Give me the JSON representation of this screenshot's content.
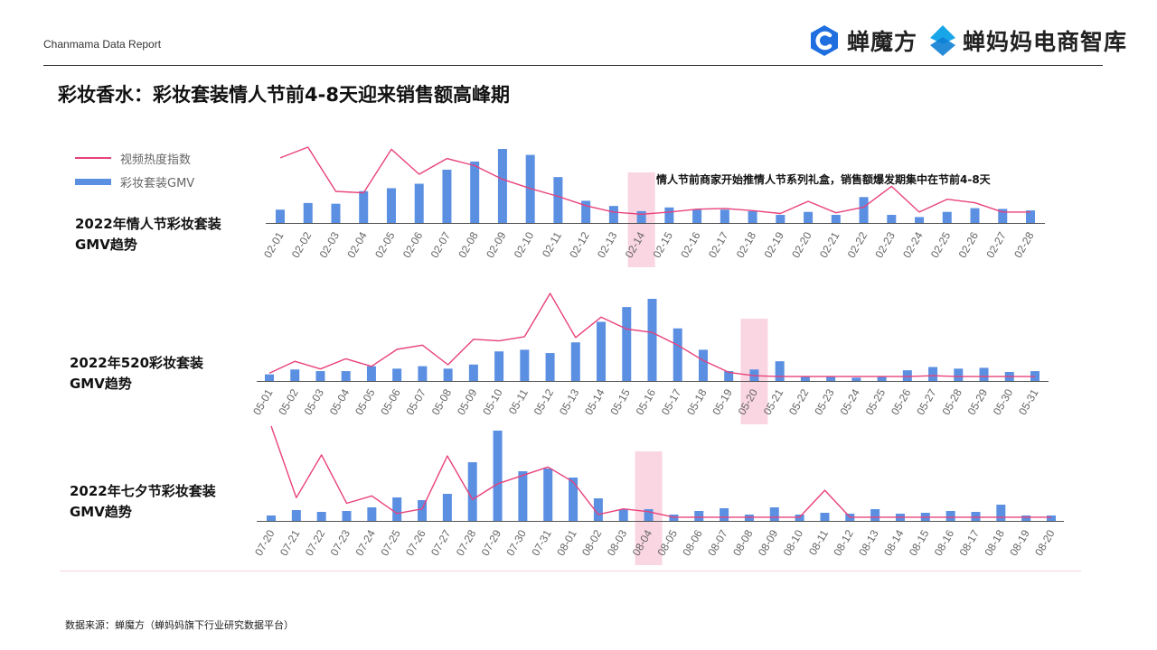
{
  "header": {
    "report_label": "Chanmama Data Report",
    "brand1_name": "蝉魔方",
    "brand2_name": "蝉妈妈电商智库",
    "brand1_color": "#1f6fe0",
    "brand2_color": "#19a6e8"
  },
  "title": "彩妆香水：彩妆套装情人节前4-8天迎来销售额高峰期",
  "legend": {
    "line_label": "视频热度指数",
    "bar_label": "彩妆套装GMV",
    "line_color": "#e8427a",
    "bar_color": "#5b8fe2"
  },
  "annotation": "情人节前商家开始推情人节系列礼盒，销售额爆发期集中在节前4-8天",
  "source": "数据来源：蝉魔方（蝉妈妈旗下行业研究数据平台）",
  "chart_data": [
    {
      "type": "bar",
      "label_line1": "2022年情人节彩妆套装",
      "label_line2": "GMV趋势",
      "categories": [
        "02-01",
        "02-02",
        "02-03",
        "02-04",
        "02-05",
        "02-06",
        "02-07",
        "02-08",
        "02-09",
        "02-10",
        "02-11",
        "02-12",
        "02-13",
        "02-14",
        "02-15",
        "02-16",
        "02-17",
        "02-18",
        "02-19",
        "02-20",
        "02-21",
        "02-22",
        "02-23",
        "02-24",
        "02-25",
        "02-26",
        "02-27",
        "02-28"
      ],
      "highlight": "02-14",
      "series": [
        {
          "kind": "bar",
          "values": [
            18,
            27,
            26,
            43,
            47,
            53,
            72,
            83,
            100,
            92,
            62,
            30,
            23,
            16,
            21,
            18,
            18,
            16,
            11,
            15,
            11,
            35,
            11,
            8,
            15,
            20,
            19,
            17
          ]
        },
        {
          "kind": "line",
          "values": [
            85,
            100,
            38,
            36,
            97,
            62,
            84,
            74,
            55,
            42,
            31,
            18,
            9,
            6,
            9,
            13,
            14,
            11,
            7,
            24,
            8,
            16,
            45,
            9,
            27,
            22,
            9,
            9
          ]
        }
      ],
      "ylim": [
        0,
        100
      ]
    },
    {
      "type": "bar",
      "label_line1": "2022年520彩妆套装",
      "label_line2": "GMV趋势",
      "categories": [
        "05-01",
        "05-02",
        "05-03",
        "05-04",
        "05-05",
        "05-06",
        "05-07",
        "05-08",
        "05-09",
        "05-10",
        "05-11",
        "05-12",
        "05-13",
        "05-14",
        "05-15",
        "05-16",
        "05-17",
        "05-18",
        "05-19",
        "05-20",
        "05-21",
        "05-22",
        "05-23",
        "05-24",
        "05-25",
        "05-26",
        "05-27",
        "05-28",
        "05-29",
        "05-30",
        "05-31"
      ],
      "highlight": "05-20",
      "series": [
        {
          "kind": "bar",
          "values": [
            8,
            14,
            12,
            12,
            18,
            15,
            18,
            15,
            20,
            36,
            38,
            34,
            47,
            72,
            90,
            100,
            64,
            38,
            12,
            14,
            24,
            5,
            5,
            4,
            5,
            13,
            17,
            15,
            16,
            11,
            12
          ]
        },
        {
          "kind": "line",
          "values": [
            6,
            20,
            11,
            23,
            14,
            34,
            39,
            16,
            46,
            44,
            49,
            100,
            48,
            72,
            58,
            54,
            39,
            21,
            7,
            3,
            2,
            2,
            2,
            2,
            2,
            2,
            3,
            2,
            2,
            2,
            2
          ]
        }
      ],
      "ylim": [
        0,
        100
      ]
    },
    {
      "type": "bar",
      "label_line1": "2022年七夕节彩妆套装",
      "label_line2": "GMV趋势",
      "categories": [
        "07-20",
        "07-21",
        "07-22",
        "07-23",
        "07-24",
        "07-25",
        "07-26",
        "07-27",
        "07-28",
        "07-29",
        "07-30",
        "07-31",
        "08-01",
        "08-02",
        "08-03",
        "08-04",
        "08-05",
        "08-06",
        "08-07",
        "08-08",
        "08-09",
        "08-10",
        "08-11",
        "08-12",
        "08-13",
        "08-14",
        "08-15",
        "08-16",
        "08-17",
        "08-18",
        "08-19",
        "08-20"
      ],
      "highlight": "08-04",
      "series": [
        {
          "kind": "bar",
          "values": [
            6,
            12,
            10,
            11,
            15,
            26,
            23,
            30,
            65,
            100,
            55,
            58,
            48,
            25,
            13,
            13,
            7,
            11,
            14,
            7,
            15,
            7,
            9,
            8,
            13,
            8,
            9,
            11,
            10,
            18,
            6,
            6
          ]
        },
        {
          "kind": "line",
          "values": [
            100,
            23,
            69,
            17,
            25,
            6,
            11,
            68,
            21,
            38,
            47,
            56,
            40,
            5,
            11,
            8,
            2,
            2,
            2,
            2,
            2,
            2,
            31,
            2,
            2,
            2,
            2,
            2,
            2,
            2,
            2,
            2
          ]
        }
      ],
      "ylim": [
        0,
        100
      ]
    }
  ]
}
